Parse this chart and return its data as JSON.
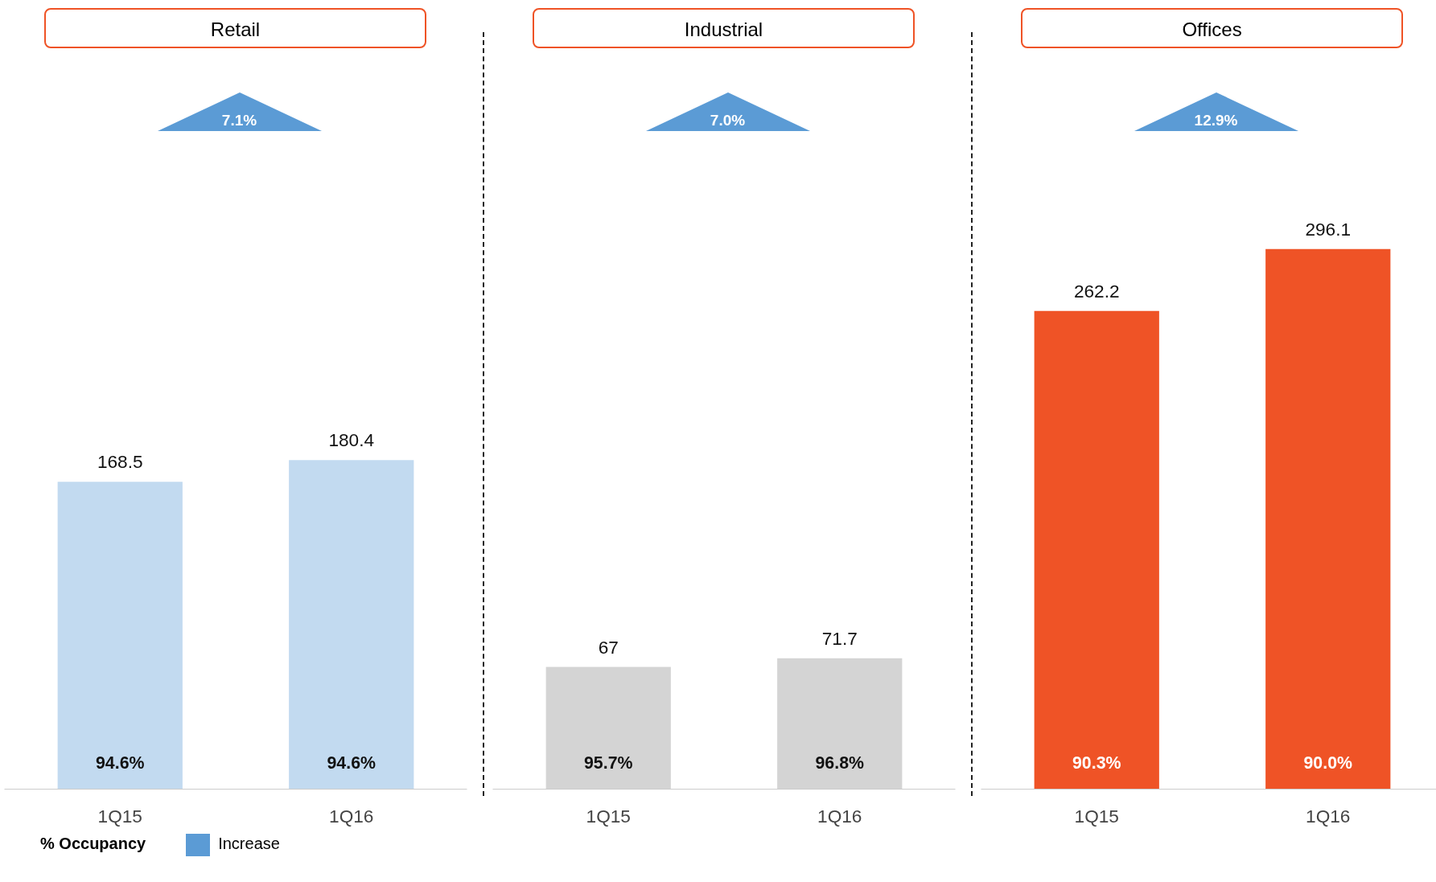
{
  "chart_data": [
    {
      "type": "bar",
      "title": "Retail",
      "categories": [
        "1Q15",
        "1Q16"
      ],
      "values": [
        168.5,
        180.4
      ],
      "colors": [
        "#c2daf0",
        "#c2daf0"
      ],
      "data_labels": true,
      "annotations": [
        "7.1%",
        {
          "text": "94.6%",
          "x": "1Q15",
          "y": 0
        },
        {
          "text": "94.6%",
          "x": "1Q16",
          "y": 0
        },
        "% Occupancy",
        "Increase"
      ]
    },
    {
      "type": "bar",
      "title": "Industrial",
      "categories": [
        "1Q15",
        "1Q16"
      ],
      "values": [
        67,
        71.7
      ],
      "colors": [
        "#d4d4d4",
        "#d4d4d4"
      ],
      "data_labels": true,
      "annotations": [
        "7.0%",
        {
          "text": "95.7%",
          "x": "1Q15",
          "y": 0
        },
        {
          "text": "96.8%",
          "x": "1Q16",
          "y": 0
        }
      ]
    },
    {
      "type": "bar",
      "title": "Offices",
      "categories": [
        "1Q15",
        "1Q16"
      ],
      "values": [
        262.2,
        296.1
      ],
      "colors": [
        "#ef5326",
        "#ef5326"
      ],
      "data_labels": true,
      "annotations": [
        "12.9%",
        {
          "text": "90.3%",
          "x": "1Q15",
          "y": 0
        },
        {
          "text": "90.0%",
          "x": "1Q16",
          "y": 0
        }
      ]
    }
  ]
}
